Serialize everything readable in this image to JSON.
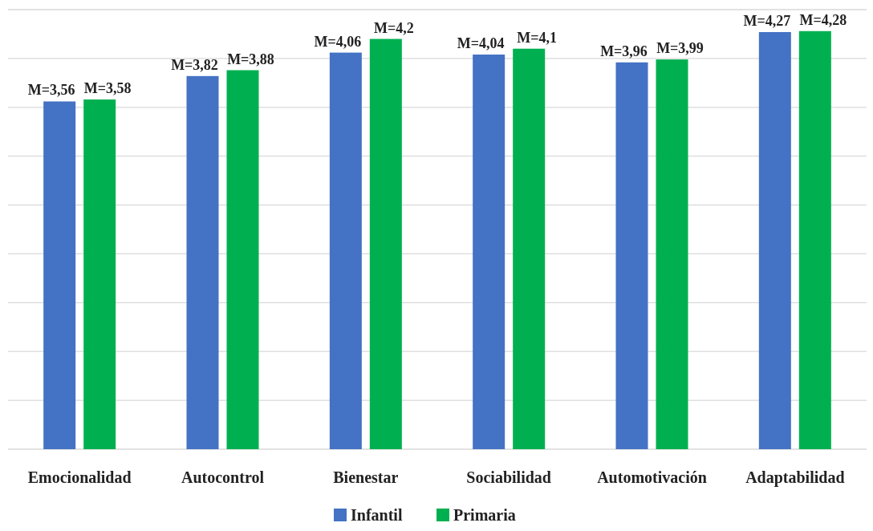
{
  "chart_data": {
    "type": "bar",
    "categories": [
      "Emocionalidad",
      "Autocontrol",
      "Bienestar",
      "Sociabilidad",
      "Automotivación",
      "Adaptabilidad"
    ],
    "series": [
      {
        "name": "Infantil",
        "color": "#4472c4",
        "values": [
          3.56,
          3.82,
          4.06,
          4.04,
          3.96,
          4.27
        ],
        "value_labels": [
          "M=3,56",
          "M=3,82",
          "M=4,06",
          "M=4,04",
          "M=3,96",
          "M=4,27"
        ]
      },
      {
        "name": "Primaria",
        "color": "#00b050",
        "values": [
          3.58,
          3.88,
          4.2,
          4.1,
          3.99,
          4.28
        ],
        "value_labels": [
          "M=3,58",
          "M=3,88",
          "M=4,2",
          "M=4,1",
          "M=3,99",
          "M=4,28"
        ]
      }
    ],
    "ylim": [
      0,
      4.5
    ],
    "yticks": [
      {
        "value": 0,
        "label": null
      },
      {
        "value": 0.5,
        "label": null
      },
      {
        "value": 1,
        "label": null
      },
      {
        "value": 1.5,
        "label": null
      },
      {
        "value": 2,
        "label": null
      },
      {
        "value": 2.5,
        "label": null
      },
      {
        "value": 3,
        "label": null
      },
      {
        "value": 3.5,
        "label": null
      },
      {
        "value": 4,
        "label": null
      },
      {
        "value": 4.5,
        "label": null
      }
    ],
    "grid": "y",
    "legend": "bottom",
    "tick_labels": "x"
  }
}
